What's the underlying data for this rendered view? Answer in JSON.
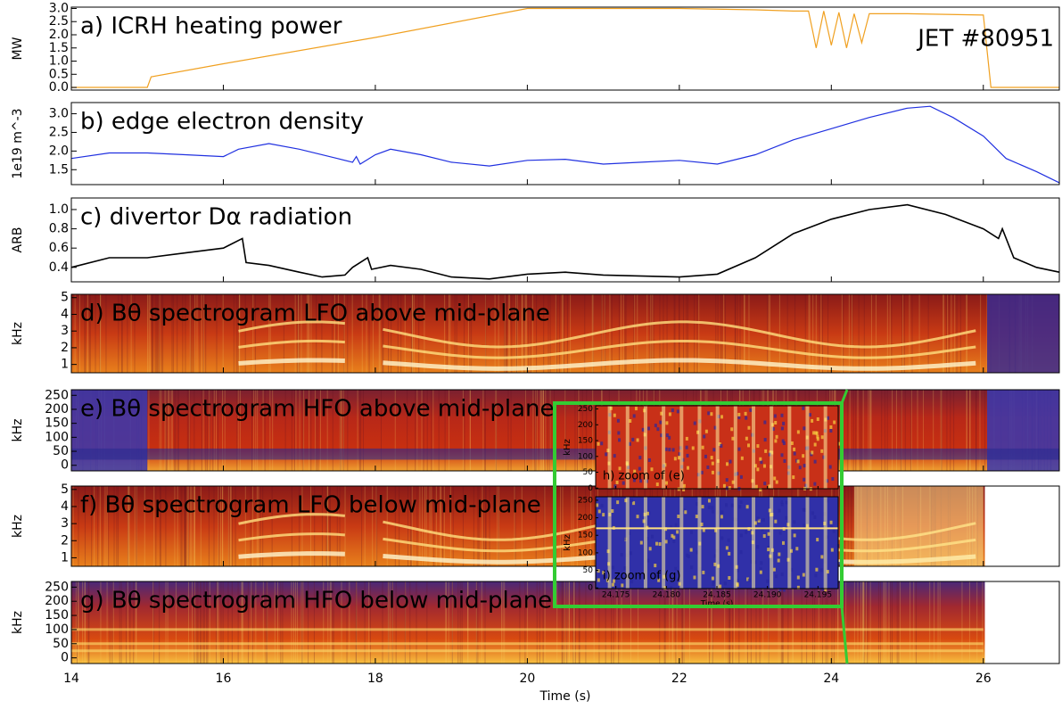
{
  "chart_data": [
    {
      "type": "line",
      "title": "a) ICRH heating power",
      "annotation": "JET #80951",
      "ylabel": "MW",
      "color": "#f0a020",
      "x": [
        14,
        15,
        15.05,
        16,
        18,
        20,
        22,
        23,
        23.5,
        23.7,
        23.8,
        23.9,
        24.0,
        24.1,
        24.2,
        24.3,
        24.4,
        24.5,
        25,
        26,
        26.1,
        27
      ],
      "values": [
        0,
        0,
        0.4,
        0.9,
        1.9,
        3.0,
        3.0,
        2.95,
        2.9,
        2.9,
        1.5,
        2.9,
        1.6,
        2.85,
        1.5,
        2.8,
        1.7,
        2.8,
        2.8,
        2.75,
        0,
        0
      ],
      "xlim": [
        14,
        27
      ],
      "ylim": [
        -0.1,
        3.05
      ],
      "yticks": [
        {
          "value": 0,
          "label": "0.0"
        },
        0.5,
        {
          "value": 1,
          "label": "1.0"
        },
        1.5,
        {
          "value": 2,
          "label": "2.0"
        },
        2.5,
        {
          "value": 3,
          "label": "3.0"
        }
      ]
    },
    {
      "type": "line",
      "title": "b) edge electron density",
      "ylabel": "1e19 m^-3",
      "color": "#2030e0",
      "x": [
        14,
        14.5,
        15,
        15.5,
        16,
        16.2,
        16.6,
        17,
        17.5,
        17.7,
        17.75,
        17.8,
        18,
        18.2,
        18.6,
        19,
        19.5,
        20,
        20.5,
        21,
        21.5,
        22,
        22.5,
        23,
        23.5,
        24,
        24.5,
        25,
        25.3,
        25.6,
        26,
        26.3,
        26.7,
        27
      ],
      "values": [
        1.8,
        1.95,
        1.95,
        1.9,
        1.85,
        2.05,
        2.2,
        2.05,
        1.8,
        1.7,
        1.85,
        1.65,
        1.9,
        2.05,
        1.9,
        1.7,
        1.6,
        1.75,
        1.78,
        1.65,
        1.7,
        1.75,
        1.65,
        1.9,
        2.3,
        2.6,
        2.9,
        3.15,
        3.2,
        2.9,
        2.4,
        1.8,
        1.45,
        1.15
      ],
      "xlim": [
        14,
        27
      ],
      "ylim": [
        1.1,
        3.3
      ],
      "yticks": [
        1.5,
        {
          "value": 2,
          "label": "2.0"
        },
        2.5,
        {
          "value": 3,
          "label": "3.0"
        }
      ]
    },
    {
      "type": "line",
      "title": "c) divertor Dα radiation",
      "ylabel": "ARB",
      "color": "#000000",
      "x": [
        14,
        14.5,
        15,
        15.5,
        16,
        16.25,
        16.3,
        16.6,
        17,
        17.3,
        17.6,
        17.7,
        17.9,
        17.95,
        18.2,
        18.6,
        19,
        19.5,
        20,
        20.5,
        21,
        22,
        22.5,
        23,
        23.5,
        24,
        24.5,
        25,
        25.5,
        26,
        26.2,
        26.25,
        26.4,
        26.7,
        27
      ],
      "values": [
        0.4,
        0.5,
        0.5,
        0.55,
        0.6,
        0.7,
        0.45,
        0.42,
        0.35,
        0.3,
        0.32,
        0.4,
        0.5,
        0.38,
        0.42,
        0.38,
        0.3,
        0.28,
        0.33,
        0.35,
        0.32,
        0.3,
        0.33,
        0.5,
        0.75,
        0.9,
        1.0,
        1.05,
        0.95,
        0.8,
        0.7,
        0.8,
        0.5,
        0.4,
        0.35
      ],
      "xlim": [
        14,
        27
      ],
      "ylim": [
        0.25,
        1.12
      ],
      "yticks": [
        0.4,
        0.6,
        0.8,
        {
          "value": 1,
          "label": "1.0"
        }
      ]
    },
    {
      "type": "spectrogram",
      "title": "d) Bθ spectrogram LFO above mid-plane",
      "ylabel": "kHz",
      "xlim": [
        14,
        27
      ],
      "ylim": [
        0.5,
        5.2
      ],
      "yticks": [
        1,
        2,
        3,
        4,
        5
      ]
    },
    {
      "type": "spectrogram",
      "title": "e) Bθ spectrogram HFO above mid-plane",
      "ylabel": "kHz",
      "xlim": [
        14,
        27
      ],
      "ylim": [
        -20,
        270
      ],
      "yticks": [
        0,
        50,
        100,
        150,
        200,
        250
      ]
    },
    {
      "type": "spectrogram",
      "title": "f) Bθ spectrogram LFO below mid-plane",
      "ylabel": "kHz",
      "xlim": [
        14,
        27
      ],
      "ylim": [
        0.5,
        5.2
      ],
      "yticks": [
        1,
        2,
        3,
        4,
        5
      ]
    },
    {
      "type": "spectrogram",
      "title": "g) Bθ spectrogram HFO below mid-plane",
      "ylabel": "kHz",
      "xlabel": "Time (s)",
      "xlim": [
        14,
        27
      ],
      "ylim": [
        -20,
        270
      ],
      "yticks": [
        0,
        50,
        100,
        150,
        200,
        250
      ],
      "xticks": [
        14,
        16,
        18,
        20,
        22,
        24,
        26
      ]
    },
    {
      "type": "spectrogram",
      "title": "h) zoom of (e)",
      "ylabel": "kHz",
      "xlim": [
        24.173,
        24.197
      ],
      "ylim": [
        -2,
        260
      ],
      "yticks": [
        0,
        50,
        100,
        150,
        200,
        250
      ]
    },
    {
      "type": "spectrogram",
      "title": "i) zoom of (g)",
      "ylabel": "kHz",
      "xlabel": "Time (s)",
      "xlim": [
        24.173,
        24.197
      ],
      "ylim": [
        -2,
        260
      ],
      "yticks": [
        0,
        50,
        100,
        150,
        200,
        250
      ],
      "xticks": [
        24.175,
        {
          "value": 24.18,
          "label": "24.180"
        },
        24.185,
        {
          "value": 24.19,
          "label": "24.190"
        },
        24.195
      ]
    }
  ]
}
